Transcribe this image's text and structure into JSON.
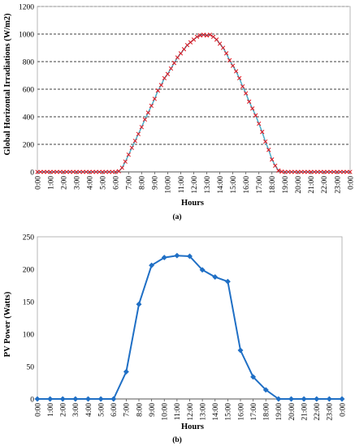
{
  "chart_data": [
    {
      "type": "line",
      "panel_label": "(a)",
      "xlabel": "Hours",
      "ylabel": "Global Horizontal Irradiations (W/m2)",
      "ylim": [
        0,
        1200
      ],
      "yticks": [
        0,
        200,
        400,
        600,
        800,
        1000,
        1200
      ],
      "xticks": [
        "0:00",
        "1:00",
        "2:00",
        "3:00",
        "4:00",
        "5:00",
        "6:00",
        "7:00",
        "8:00",
        "9:00",
        "10:00",
        "11:00",
        "12:00",
        "13:00",
        "14:00",
        "15:00",
        "16:00",
        "17:00",
        "18:00",
        "19:00",
        "20:00",
        "21:00",
        "22:00",
        "23:00",
        "0:00"
      ],
      "grid": "horizontal dashed",
      "x_unit": "hours",
      "series": [
        {
          "color": "#4bacc6",
          "marker": "x",
          "marker_color": "#e0101a",
          "x": [
            0,
            0.25,
            0.5,
            0.75,
            1,
            1.25,
            1.5,
            1.75,
            2,
            2.25,
            2.5,
            2.75,
            3,
            3.25,
            3.5,
            3.75,
            4,
            4.25,
            4.5,
            4.75,
            5,
            5.25,
            5.5,
            5.75,
            6,
            6.25,
            6.5,
            6.75,
            7,
            7.25,
            7.5,
            7.75,
            8,
            8.25,
            8.5,
            8.75,
            9,
            9.25,
            9.5,
            9.75,
            10,
            10.25,
            10.5,
            10.75,
            11,
            11.25,
            11.5,
            11.75,
            12,
            12.25,
            12.5,
            12.75,
            13,
            13.25,
            13.5,
            13.75,
            14,
            14.25,
            14.5,
            14.75,
            15,
            15.25,
            15.5,
            15.75,
            16,
            16.25,
            16.5,
            16.75,
            17,
            17.25,
            17.5,
            17.75,
            18,
            18.25,
            18.5,
            18.75,
            19,
            19.25,
            19.5,
            19.75,
            20,
            20.25,
            20.5,
            20.75,
            21,
            21.25,
            21.5,
            21.75,
            22,
            22.25,
            22.5,
            22.75,
            23,
            23.25,
            23.5,
            23.75,
            24
          ],
          "values": [
            0,
            0,
            0,
            0,
            0,
            0,
            0,
            0,
            0,
            0,
            0,
            0,
            0,
            0,
            0,
            0,
            0,
            0,
            0,
            0,
            0,
            0,
            0,
            0,
            0,
            5,
            30,
            75,
            125,
            175,
            225,
            275,
            325,
            380,
            430,
            480,
            530,
            590,
            630,
            680,
            710,
            750,
            790,
            830,
            860,
            890,
            920,
            940,
            960,
            980,
            990,
            995,
            990,
            995,
            980,
            960,
            930,
            900,
            860,
            810,
            770,
            730,
            680,
            620,
            570,
            510,
            460,
            410,
            350,
            290,
            220,
            160,
            90,
            45,
            10,
            2,
            0,
            0,
            0,
            0,
            0,
            0,
            0,
            0,
            0,
            0,
            0,
            0,
            0,
            0,
            0,
            0,
            0,
            0,
            0,
            0,
            0
          ]
        }
      ]
    },
    {
      "type": "line",
      "panel_label": "(b)",
      "xlabel": "Hours",
      "ylabel": "PV Power (Watts)",
      "ylim": [
        0,
        250
      ],
      "yticks": [
        0,
        50,
        100,
        150,
        200,
        250
      ],
      "xticks": [
        "0:00",
        "1:00",
        "2:00",
        "3:00",
        "4:00",
        "5:00",
        "6:00",
        "7:00",
        "8:00",
        "9:00",
        "10:00",
        "11:00",
        "12:00",
        "13:00",
        "14:00",
        "15:00",
        "16:00",
        "17:00",
        "18:00",
        "19:00",
        "20:00",
        "21:00",
        "22:00",
        "23:00",
        "0:00"
      ],
      "grid": "none",
      "series": [
        {
          "color": "#1f6fc5",
          "marker": "diamond",
          "x": [
            "0:00",
            "1:00",
            "2:00",
            "3:00",
            "4:00",
            "5:00",
            "6:00",
            "7:00",
            "8:00",
            "9:00",
            "10:00",
            "11:00",
            "12:00",
            "13:00",
            "14:00",
            "15:00",
            "16:00",
            "17:00",
            "18:00",
            "19:00",
            "20:00",
            "21:00",
            "22:00",
            "23:00",
            "0:00"
          ],
          "values": [
            0,
            0,
            0,
            0,
            0,
            0,
            0,
            42,
            146,
            206,
            218,
            221,
            220,
            199,
            188,
            181,
            75,
            34,
            14,
            0,
            0,
            0,
            0,
            0,
            0
          ]
        }
      ]
    }
  ]
}
